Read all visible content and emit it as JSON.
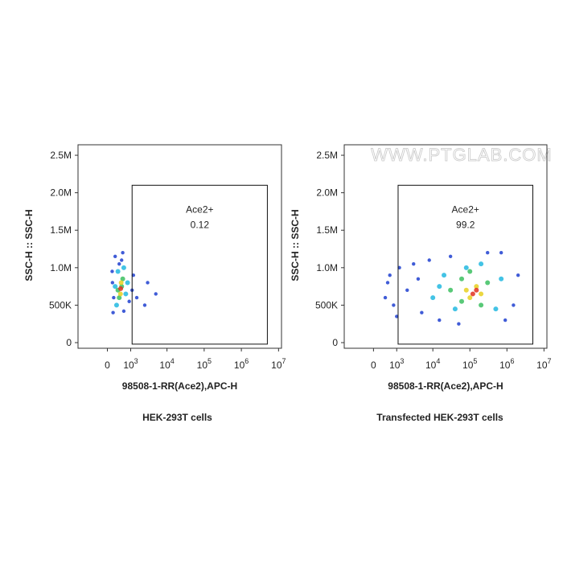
{
  "chart_data": [
    {
      "type": "scatter",
      "caption": "HEK-293T cells",
      "xlabel": "98508-1-RR(Ace2),APC-H",
      "ylabel": "SSC-H :: SSC-H",
      "xscale": "asinh",
      "xlim": [
        -1500,
        12000000
      ],
      "ylim": [
        -75000,
        2640000
      ],
      "xticks": [
        0,
        {
          "value": 1000,
          "label": "10",
          "exp": "3"
        },
        {
          "value": 10000,
          "label": "10",
          "exp": "4"
        },
        {
          "value": 100000,
          "label": "10",
          "exp": "5"
        },
        {
          "value": 1000000,
          "label": "10",
          "exp": "6"
        },
        {
          "value": 10000000,
          "label": "10",
          "exp": "7"
        }
      ],
      "yticks": [
        0,
        {
          "value": 500000,
          "label": "500K"
        },
        {
          "value": 1000000,
          "label": "1.0M"
        },
        {
          "value": 1500000,
          "label": "1.5M"
        },
        {
          "value": 2000000,
          "label": "2.0M"
        },
        {
          "value": 2500000,
          "label": "2.5M"
        }
      ],
      "gate": {
        "label": "Ace2+",
        "value": 0.12,
        "xlim": [
          1100,
          5000000
        ],
        "ylim": [
          -20000,
          2100000
        ]
      },
      "series": [
        {
          "color": "#1f3fd0",
          "x": [
            180,
            600,
            250,
            550,
            160,
            1200,
            400,
            900,
            200,
            500,
            150,
            1100,
            1500,
            2500,
            5000,
            3000
          ],
          "values": [
            400000,
            420000,
            1150000,
            1200000,
            800000,
            900000,
            1050000,
            550000,
            600000,
            1100000,
            950000,
            700000,
            600000,
            500000,
            650000,
            800000
          ]
        },
        {
          "color": "#22b8e0",
          "x": [
            300,
            700,
            350,
            600,
            250,
            800
          ],
          "values": [
            500000,
            650000,
            950000,
            1000000,
            750000,
            800000
          ]
        },
        {
          "color": "#3cc060",
          "x": [
            400,
            550,
            350,
            500
          ],
          "values": [
            600000,
            850000,
            700000,
            750000
          ]
        },
        {
          "color": "#e8d020",
          "x": [
            450,
            480
          ],
          "values": [
            650000,
            800000
          ]
        },
        {
          "color": "#e03020",
          "x": [
            460
          ],
          "values": [
            720000
          ]
        }
      ]
    },
    {
      "type": "scatter",
      "caption": "Transfected HEK-293T cells",
      "xlabel": "98508-1-RR(Ace2),APC-H",
      "ylabel": "SSC-H :: SSC-H",
      "watermark": "WWW.PTGLAB.COM",
      "xscale": "asinh",
      "xlim": [
        -1500,
        12000000
      ],
      "ylim": [
        -75000,
        2640000
      ],
      "xticks": [
        0,
        {
          "value": 1000,
          "label": "10",
          "exp": "3"
        },
        {
          "value": 10000,
          "label": "10",
          "exp": "4"
        },
        {
          "value": 100000,
          "label": "10",
          "exp": "5"
        },
        {
          "value": 1000000,
          "label": "10",
          "exp": "6"
        },
        {
          "value": 10000000,
          "label": "10",
          "exp": "7"
        }
      ],
      "yticks": [
        0,
        {
          "value": 500000,
          "label": "500K"
        },
        {
          "value": 1000000,
          "label": "1.0M"
        },
        {
          "value": 1500000,
          "label": "1.5M"
        },
        {
          "value": 2000000,
          "label": "2.0M"
        },
        {
          "value": 2500000,
          "label": "2.5M"
        }
      ],
      "gate": {
        "label": "Ace2+",
        "value": 99.2,
        "xlim": [
          1100,
          5000000
        ],
        "ylim": [
          -20000,
          2100000
        ]
      },
      "series": [
        {
          "color": "#1f3fd0",
          "x": [
            600,
            800,
            1200,
            2000,
            3000,
            5000,
            8000,
            15000,
            30000,
            700000,
            1500000,
            2000000,
            400,
            1000,
            4000,
            50000,
            900000,
            300000,
            500
          ],
          "values": [
            900000,
            500000,
            1000000,
            700000,
            1050000,
            400000,
            1100000,
            300000,
            1150000,
            1200000,
            500000,
            900000,
            600000,
            350000,
            850000,
            250000,
            300000,
            1200000,
            800000
          ]
        },
        {
          "color": "#22b8e0",
          "x": [
            10000,
            20000,
            40000,
            80000,
            500000,
            700000,
            200000,
            15000
          ],
          "values": [
            600000,
            900000,
            450000,
            1000000,
            450000,
            850000,
            1050000,
            750000
          ]
        },
        {
          "color": "#3cc060",
          "x": [
            30000,
            60000,
            60000,
            200000,
            300000,
            100000
          ],
          "values": [
            700000,
            550000,
            850000,
            500000,
            800000,
            950000
          ]
        },
        {
          "color": "#e8d020",
          "x": [
            100000,
            150000,
            80000,
            200000
          ],
          "values": [
            600000,
            750000,
            700000,
            650000
          ]
        },
        {
          "color": "#e03020",
          "x": [
            120000,
            150000
          ],
          "values": [
            650000,
            700000
          ]
        }
      ]
    }
  ]
}
